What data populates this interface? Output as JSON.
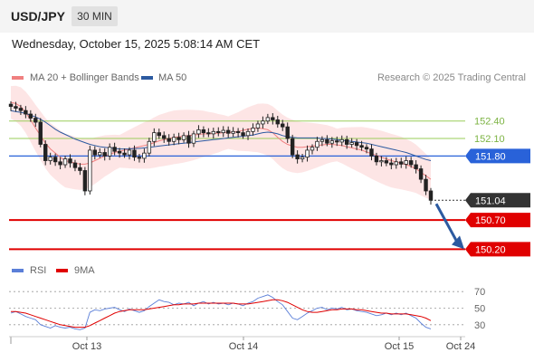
{
  "header": {
    "pair": "USD/JPY",
    "timeframe": "30 MIN",
    "datetime": "Wednesday, October 15, 2025 5:08:14 AM CET"
  },
  "legend": {
    "items": [
      {
        "label": "MA 20 + Bollinger Bands",
        "color": "#f08080"
      },
      {
        "label": "MA 50",
        "color": "#2c5aa0"
      }
    ],
    "copyright": "Research © 2025 Trading Central"
  },
  "rsi_legend": {
    "items": [
      {
        "label": "RSI",
        "color": "#5b7fd8"
      },
      {
        "label": "9MA",
        "color": "#e00000"
      }
    ]
  },
  "chart_data": [
    {
      "type": "candlestick",
      "title": "USD/JPY",
      "ylim": [
        150.05,
        152.8
      ],
      "x_labels": [
        "Oct 13",
        "Oct 14",
        "Oct 15",
        "Oct 24"
      ],
      "price_levels": [
        {
          "value": 152.4,
          "label": "152.40",
          "kind": "resistance",
          "color": "#9acd5a"
        },
        {
          "value": 152.1,
          "label": "152.10",
          "kind": "resistance",
          "color": "#9acd5a"
        },
        {
          "value": 151.8,
          "label": "151.80",
          "kind": "pivot",
          "color": "#2962d9"
        },
        {
          "value": 151.04,
          "label": "151.04",
          "kind": "last",
          "color": "#333333"
        },
        {
          "value": 150.7,
          "label": "150.70",
          "kind": "support",
          "color": "#e00000"
        },
        {
          "value": 150.2,
          "label": "150.20",
          "kind": "support",
          "color": "#e00000"
        }
      ],
      "closes": [
        152.65,
        152.62,
        152.58,
        152.52,
        152.45,
        152.38,
        152.0,
        151.72,
        151.78,
        151.7,
        151.65,
        151.75,
        151.68,
        151.6,
        151.55,
        151.2,
        151.9,
        151.82,
        151.86,
        151.8,
        151.95,
        151.88,
        151.85,
        151.82,
        151.9,
        151.78,
        151.76,
        151.85,
        152.05,
        152.2,
        152.15,
        152.1,
        152.05,
        152.12,
        152.08,
        152.15,
        152.02,
        152.18,
        152.25,
        152.2,
        152.18,
        152.22,
        152.2,
        152.24,
        152.19,
        152.22,
        152.2,
        152.15,
        152.22,
        152.28,
        152.35,
        152.4,
        152.46,
        152.42,
        152.35,
        152.3,
        152.1,
        151.82,
        151.75,
        151.78,
        151.9,
        151.95,
        152.05,
        152.08,
        152.02,
        152.06,
        152.04,
        152.08,
        152.0,
        152.03,
        151.98,
        151.95,
        151.92,
        151.8,
        151.7,
        151.72,
        151.68,
        151.65,
        151.7,
        151.66,
        151.72,
        151.65,
        151.58,
        151.4,
        151.2,
        151.04
      ],
      "ma20": [
        152.72,
        152.7,
        152.65,
        152.55,
        152.42,
        152.28,
        152.15,
        152.02,
        151.92,
        151.85,
        151.78,
        151.72,
        151.7,
        151.68,
        151.66,
        151.66,
        151.68,
        151.72,
        151.76,
        151.8,
        151.83,
        151.86,
        151.88,
        151.9,
        151.92,
        151.94,
        151.96,
        151.98,
        152.0,
        152.03,
        152.06,
        152.08,
        152.1,
        152.12,
        152.13,
        152.14,
        152.15,
        152.16,
        152.17,
        152.18,
        152.18,
        152.19,
        152.19,
        152.2,
        152.2,
        152.21,
        152.22,
        152.24,
        152.26,
        152.27,
        152.28,
        152.27,
        152.25,
        152.2,
        152.12,
        152.05,
        152.0,
        151.97,
        151.95,
        151.95,
        151.96,
        151.97,
        151.98,
        151.99,
        152.0,
        152.0,
        151.99,
        151.98,
        151.96,
        151.94,
        151.92,
        151.9,
        151.87,
        151.84,
        151.81,
        151.78,
        151.75,
        151.72,
        151.7,
        151.68,
        151.65,
        151.62,
        151.58,
        151.52,
        151.46,
        151.4
      ],
      "ma50": [
        152.58,
        152.56,
        152.55,
        152.53,
        152.5,
        152.47,
        152.43,
        152.38,
        152.32,
        152.26,
        152.21,
        152.17,
        152.13,
        152.09,
        152.06,
        152.03,
        152.0,
        151.98,
        151.96,
        151.95,
        151.94,
        151.93,
        151.92,
        151.92,
        151.92,
        151.93,
        151.93,
        151.94,
        151.95,
        151.96,
        151.97,
        151.98,
        151.99,
        152.0,
        152.01,
        152.02,
        152.03,
        152.04,
        152.05,
        152.06,
        152.07,
        152.08,
        152.09,
        152.1,
        152.11,
        152.12,
        152.13,
        152.14,
        152.15,
        152.16,
        152.18,
        152.2,
        152.21,
        152.2,
        152.18,
        152.15,
        152.13,
        152.12,
        152.11,
        152.11,
        152.11,
        152.11,
        152.11,
        152.1,
        152.1,
        152.09,
        152.08,
        152.07,
        152.06,
        152.05,
        152.04,
        152.03,
        152.02,
        152.0,
        151.98,
        151.96,
        151.94,
        151.92,
        151.9,
        151.88,
        151.86,
        151.83,
        151.8,
        151.77,
        151.74,
        151.72
      ]
    },
    {
      "type": "line",
      "title": "RSI",
      "ylim": [
        20,
        80
      ],
      "y_ticks": [
        70,
        50,
        30
      ],
      "series": [
        {
          "name": "RSI",
          "color": "#5b7fd8",
          "values": [
            44,
            46,
            43,
            40,
            38,
            36,
            30,
            28,
            26,
            29,
            27,
            26,
            27,
            25,
            24,
            26,
            45,
            48,
            47,
            49,
            50,
            51,
            48,
            46,
            49,
            47,
            45,
            47,
            52,
            56,
            60,
            58,
            57,
            54,
            56,
            55,
            57,
            53,
            56,
            58,
            55,
            57,
            55,
            56,
            54,
            56,
            55,
            53,
            56,
            58,
            62,
            64,
            66,
            63,
            58,
            54,
            46,
            38,
            36,
            40,
            44,
            47,
            50,
            51,
            48,
            50,
            49,
            51,
            48,
            49,
            47,
            46,
            45,
            43,
            41,
            42,
            44,
            42,
            44,
            42,
            44,
            41,
            38,
            32,
            27,
            25
          ]
        },
        {
          "name": "9MA",
          "color": "#e00000",
          "values": [
            46,
            46,
            45,
            44,
            42,
            40,
            38,
            36,
            34,
            32,
            30,
            29,
            28,
            27,
            27,
            27,
            29,
            32,
            35,
            38,
            41,
            44,
            46,
            47,
            48,
            48,
            48,
            48,
            49,
            50,
            51,
            52,
            53,
            54,
            54,
            55,
            55,
            55,
            56,
            56,
            56,
            56,
            56,
            56,
            56,
            56,
            55,
            55,
            55,
            56,
            57,
            58,
            59,
            60,
            60,
            59,
            57,
            54,
            51,
            48,
            46,
            45,
            45,
            46,
            47,
            48,
            48,
            49,
            49,
            49,
            48,
            48,
            47,
            46,
            45,
            44,
            44,
            43,
            43,
            43,
            43,
            42,
            41,
            40,
            38,
            35
          ]
        }
      ]
    }
  ],
  "date_axis": [
    "Oct 13",
    "Oct 14",
    "Oct 15",
    "Oct 24"
  ]
}
